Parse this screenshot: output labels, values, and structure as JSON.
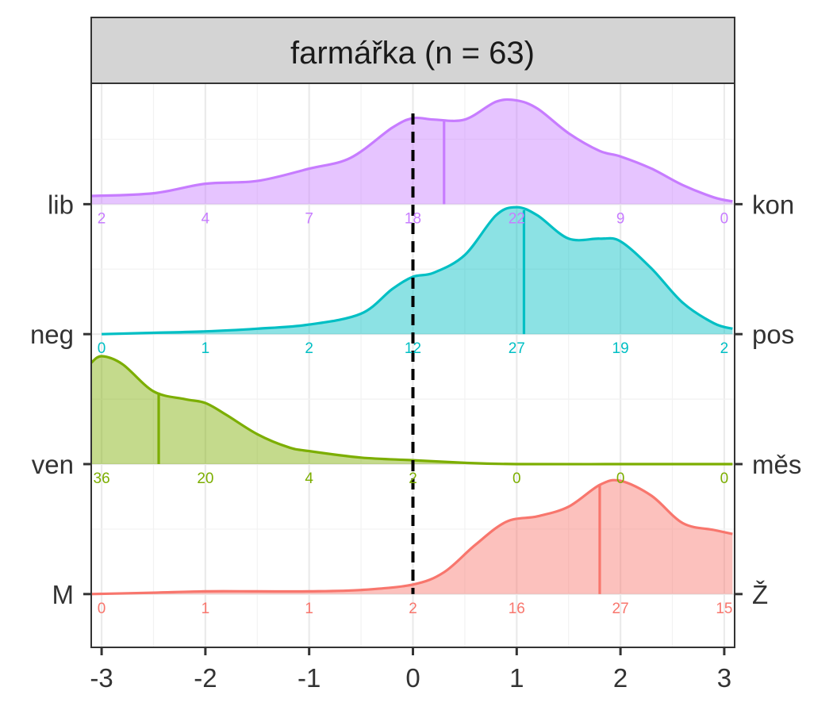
{
  "chart_data": {
    "type": "ridgeline",
    "title": "farmářka (n = 63)",
    "xlim": [
      -3.1,
      3.1
    ],
    "x_ticks": [
      "-3",
      "-2",
      "-1",
      "0",
      "1",
      "2",
      "3"
    ],
    "reference_line_x": 0,
    "count_positions": [
      -3,
      -2,
      -1,
      0,
      1,
      2,
      3
    ],
    "series": [
      {
        "left_label": "lib",
        "right_label": "kon",
        "color": "#C77CFF",
        "mean": 0.3,
        "counts": [
          "2",
          "4",
          "7",
          "18",
          "22",
          "9",
          "0"
        ],
        "density_x": [
          -3.1,
          -2.5,
          -2.0,
          -1.5,
          -1.0,
          -0.6,
          -0.2,
          0.0,
          0.2,
          0.5,
          0.8,
          1.0,
          1.2,
          1.5,
          1.8,
          2.0,
          2.3,
          2.6,
          2.9,
          3.08
        ],
        "density_y": [
          0.06,
          0.08,
          0.15,
          0.17,
          0.26,
          0.34,
          0.56,
          0.63,
          0.62,
          0.62,
          0.75,
          0.76,
          0.7,
          0.52,
          0.39,
          0.35,
          0.26,
          0.14,
          0.05,
          0.02
        ],
        "ridge_base": 4.0,
        "height": 1.05
      },
      {
        "left_label": "neg",
        "right_label": "pos",
        "color": "#00BFC4",
        "mean": 1.07,
        "counts": [
          "0",
          "1",
          "2",
          "12",
          "27",
          "19",
          "2"
        ],
        "density_x": [
          -3.0,
          -2.5,
          -2.0,
          -1.5,
          -1.0,
          -0.5,
          -0.2,
          0.0,
          0.2,
          0.5,
          0.8,
          1.0,
          1.2,
          1.5,
          1.8,
          2.0,
          2.3,
          2.6,
          2.9,
          3.08
        ],
        "density_y": [
          0.0,
          0.01,
          0.02,
          0.04,
          0.07,
          0.15,
          0.33,
          0.42,
          0.45,
          0.58,
          0.87,
          0.93,
          0.87,
          0.7,
          0.7,
          0.68,
          0.48,
          0.23,
          0.08,
          0.04
        ],
        "ridge_base": 3.0,
        "height": 1.05
      },
      {
        "left_label": "ven",
        "right_label": "měs",
        "color": "#7CAE00",
        "mean": -2.45,
        "counts": [
          "36",
          "20",
          "4",
          "2",
          "0",
          "0",
          "0"
        ],
        "density_x": [
          -3.1,
          -3.0,
          -2.8,
          -2.5,
          -2.2,
          -2.0,
          -1.8,
          -1.5,
          -1.2,
          -1.0,
          -0.5,
          0.0,
          0.5,
          1.0,
          2.0,
          3.08
        ],
        "density_y": [
          0.78,
          0.83,
          0.77,
          0.56,
          0.5,
          0.47,
          0.38,
          0.23,
          0.13,
          0.1,
          0.05,
          0.03,
          0.01,
          0.0,
          0.0,
          0.0
        ],
        "ridge_base": 2.0,
        "height": 1.0
      },
      {
        "left_label": "M",
        "right_label": "Ž",
        "color": "#F8766D",
        "mean": 1.8,
        "counts": [
          "0",
          "1",
          "1",
          "2",
          "16",
          "27",
          "15"
        ],
        "density_x": [
          -3.1,
          -2.5,
          -2.0,
          -1.5,
          -1.0,
          -0.5,
          0.0,
          0.3,
          0.6,
          0.9,
          1.2,
          1.5,
          1.8,
          2.0,
          2.3,
          2.6,
          2.9,
          3.08
        ],
        "density_y": [
          0.0,
          0.01,
          0.02,
          0.02,
          0.02,
          0.03,
          0.07,
          0.16,
          0.36,
          0.53,
          0.57,
          0.64,
          0.8,
          0.83,
          0.72,
          0.52,
          0.47,
          0.44
        ],
        "ridge_base": 1.0,
        "height": 1.05
      }
    ]
  }
}
